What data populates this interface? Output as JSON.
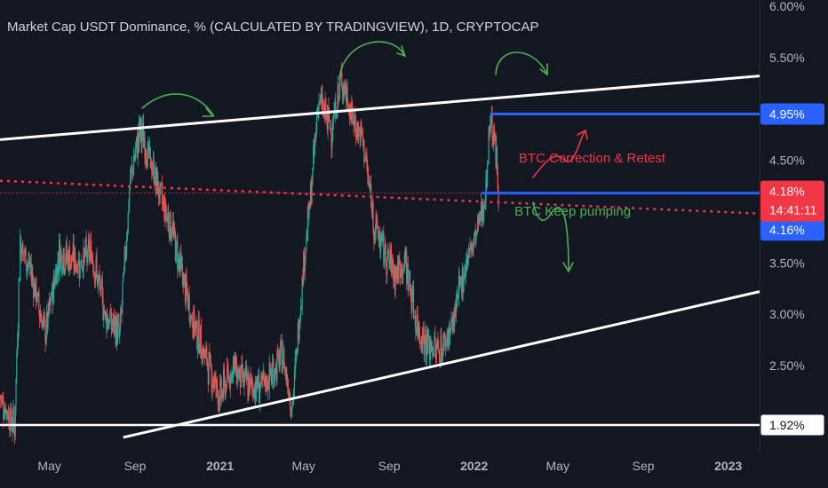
{
  "header": {
    "title": "Market Cap USDT Dominance, % (CALCULATED BY TRADINGVIEW), 1D, CRYPTOCAP"
  },
  "colors": {
    "background": "#131722",
    "axis_text": "#b2b5be",
    "up_candle": "#26a69a",
    "down_candle": "#ef5350",
    "trendline": "#ffffff",
    "horizontal_line": "#2962ff",
    "dotted_line": "#f23645",
    "annotation_green": "#4caf50",
    "annotation_red": "#f23645",
    "label_blue": "#2962ff",
    "label_red": "#f23645"
  },
  "chart_data": {
    "type": "candlestick",
    "title": "Market Cap USDT Dominance, % (CALCULATED BY TRADINGVIEW), 1D, CRYPTOCAP",
    "y_unit": "%",
    "ylim": [
      1.75,
      6.05
    ],
    "xlim": [
      "2020-02-20",
      "2023-02-15"
    ],
    "y_ticks": [
      "6.00%",
      "5.50%",
      "4.50%",
      "3.50%",
      "3.00%",
      "2.50%"
    ],
    "y_tick_values": [
      6.0,
      5.5,
      4.5,
      3.5,
      3.0,
      2.5
    ],
    "x_ticks": [
      {
        "label": "May",
        "date": "2020-05-01",
        "bold": false
      },
      {
        "label": "Sep",
        "date": "2020-09-01",
        "bold": false
      },
      {
        "label": "2021",
        "date": "2021-01-01",
        "bold": true
      },
      {
        "label": "May",
        "date": "2021-05-01",
        "bold": false
      },
      {
        "label": "Sep",
        "date": "2021-09-01",
        "bold": false
      },
      {
        "label": "2022",
        "date": "2022-01-01",
        "bold": true
      },
      {
        "label": "May",
        "date": "2022-05-01",
        "bold": false
      },
      {
        "label": "Sep",
        "date": "2022-09-01",
        "bold": false
      },
      {
        "label": "2023",
        "date": "2023-01-01",
        "bold": true
      }
    ],
    "price_path": [
      [
        "2020-02-20",
        2.2
      ],
      [
        "2020-03-12",
        1.9
      ],
      [
        "2020-03-20",
        3.7
      ],
      [
        "2020-04-05",
        3.4
      ],
      [
        "2020-04-25",
        2.8
      ],
      [
        "2020-05-15",
        3.6
      ],
      [
        "2020-06-10",
        3.5
      ],
      [
        "2020-07-01",
        3.6
      ],
      [
        "2020-07-20",
        3.0
      ],
      [
        "2020-08-10",
        2.8
      ],
      [
        "2020-08-25",
        4.3
      ],
      [
        "2020-09-08",
        4.8
      ],
      [
        "2020-09-22",
        4.5
      ],
      [
        "2020-10-10",
        4.1
      ],
      [
        "2020-10-25",
        3.8
      ],
      [
        "2020-11-20",
        3.0
      ],
      [
        "2020-12-10",
        2.6
      ],
      [
        "2021-01-01",
        2.2
      ],
      [
        "2021-01-20",
        2.5
      ],
      [
        "2021-02-10",
        2.3
      ],
      [
        "2021-03-05",
        2.3
      ],
      [
        "2021-04-01",
        2.6
      ],
      [
        "2021-04-15",
        2.1
      ],
      [
        "2021-05-01",
        3.5
      ],
      [
        "2021-05-12",
        4.2
      ],
      [
        "2021-05-22",
        5.1
      ],
      [
        "2021-06-10",
        4.8
      ],
      [
        "2021-06-25",
        5.3
      ],
      [
        "2021-07-10",
        4.9
      ],
      [
        "2021-07-25",
        4.7
      ],
      [
        "2021-08-10",
        3.9
      ],
      [
        "2021-08-25",
        3.6
      ],
      [
        "2021-09-10",
        3.4
      ],
      [
        "2021-09-25",
        3.5
      ],
      [
        "2021-10-10",
        2.9
      ],
      [
        "2021-10-25",
        2.7
      ],
      [
        "2021-11-15",
        2.65
      ],
      [
        "2021-12-01",
        2.9
      ],
      [
        "2021-12-20",
        3.5
      ],
      [
        "2022-01-05",
        3.8
      ],
      [
        "2022-01-18",
        4.2
      ],
      [
        "2022-01-24",
        4.95
      ],
      [
        "2022-02-01",
        4.6
      ],
      [
        "2022-02-05",
        4.16
      ]
    ],
    "horizontal_levels": [
      {
        "value": 4.95,
        "label": "4.95%",
        "color": "#2962ff"
      },
      {
        "value": 4.18,
        "label": "4.18%",
        "color": "#2962ff"
      },
      {
        "value": 1.92,
        "label": "1.92%",
        "color": "#ffffff"
      }
    ],
    "price_labels": [
      {
        "text": "4.95%",
        "value": 4.95,
        "style": "blue"
      },
      {
        "text": "4.18%",
        "sub": "14:41:11",
        "value": 4.18,
        "style": "red"
      },
      {
        "text": "4.16%",
        "value": 4.16,
        "style": "blue"
      },
      {
        "text": "1.92%",
        "value": 1.92,
        "style": "white"
      }
    ],
    "trendlines": [
      {
        "name": "upper",
        "from": [
          "2020-02-20",
          4.7
        ],
        "to": [
          "2023-02-15",
          5.32
        ],
        "color": "#ffffff"
      },
      {
        "name": "lower",
        "from": [
          "2020-08-15",
          1.8
        ],
        "to": [
          "2023-02-15",
          3.22
        ],
        "color": "#ffffff"
      },
      {
        "name": "dotted",
        "from": [
          "2020-02-20",
          4.3
        ],
        "to": [
          "2023-02-15",
          3.98
        ],
        "color": "#f23645",
        "dashed": true
      }
    ],
    "annotations": [
      {
        "text": "BTC Correction & Retest",
        "date": "2022-03-06",
        "value": 4.48,
        "color": "#f23645"
      },
      {
        "text": "BTC Keep pumping",
        "date": "2022-02-28",
        "value": 3.96,
        "color": "#4caf50"
      }
    ]
  }
}
